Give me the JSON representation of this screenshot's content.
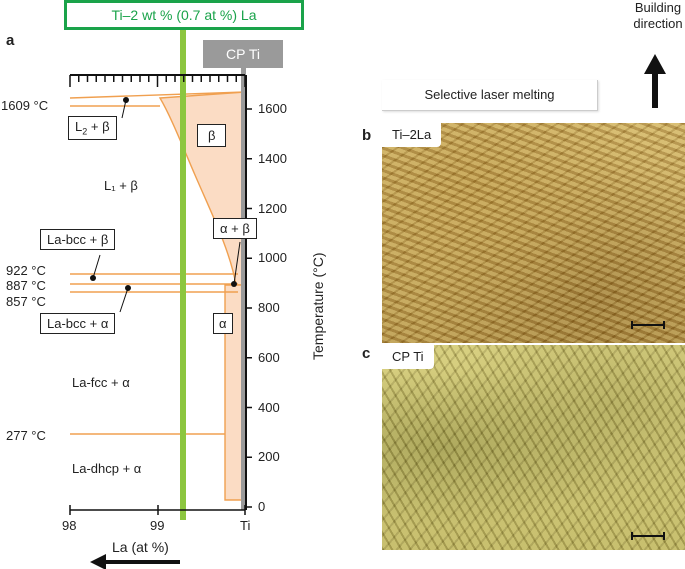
{
  "figure": {
    "panel_a_letter": "a",
    "panel_b_letter": "b",
    "panel_c_letter": "c",
    "composition_label": "Ti–2 wt % (0.7 at %) La",
    "cp_ti_label": "CP Ti",
    "temperatures": {
      "t1609": "1609 °C",
      "t922": "922 °C",
      "t887": "887 °C",
      "t857": "857 °C",
      "t277": "277 °C"
    },
    "phase_regions": {
      "l2_beta_main": "L",
      "l2_beta_sub": "2",
      "l2_beta_rest": " + β",
      "l1_beta": "L₁ + β",
      "beta": "β",
      "alpha_beta": "α + β",
      "labcc_beta": "La-bcc + β",
      "labcc_alpha": "La-bcc + α",
      "alpha": "α",
      "lafcc_alpha": "La-fcc + α",
      "ladhcp_alpha": "La-dhcp + α"
    },
    "x_axis": {
      "label": "La (at %)",
      "ticks": [
        "98",
        "99",
        "Ti"
      ]
    },
    "y_axis": {
      "label": "Temperature (°C)",
      "ticks": [
        "0",
        "200",
        "400",
        "600",
        "800",
        "1000",
        "1200",
        "1400",
        "1600"
      ]
    },
    "slm_label": "Selective laser melting",
    "building_direction": "Building direction",
    "micrograph_b_label": "Ti–2La",
    "micrograph_c_label": "CP Ti"
  },
  "colors": {
    "phase_line": "#f0a050",
    "phase_fill": "#fbdcc4",
    "green": "#1aa34a",
    "green_line": "#8cc63f",
    "grey_bar": "#9a9a9a"
  }
}
